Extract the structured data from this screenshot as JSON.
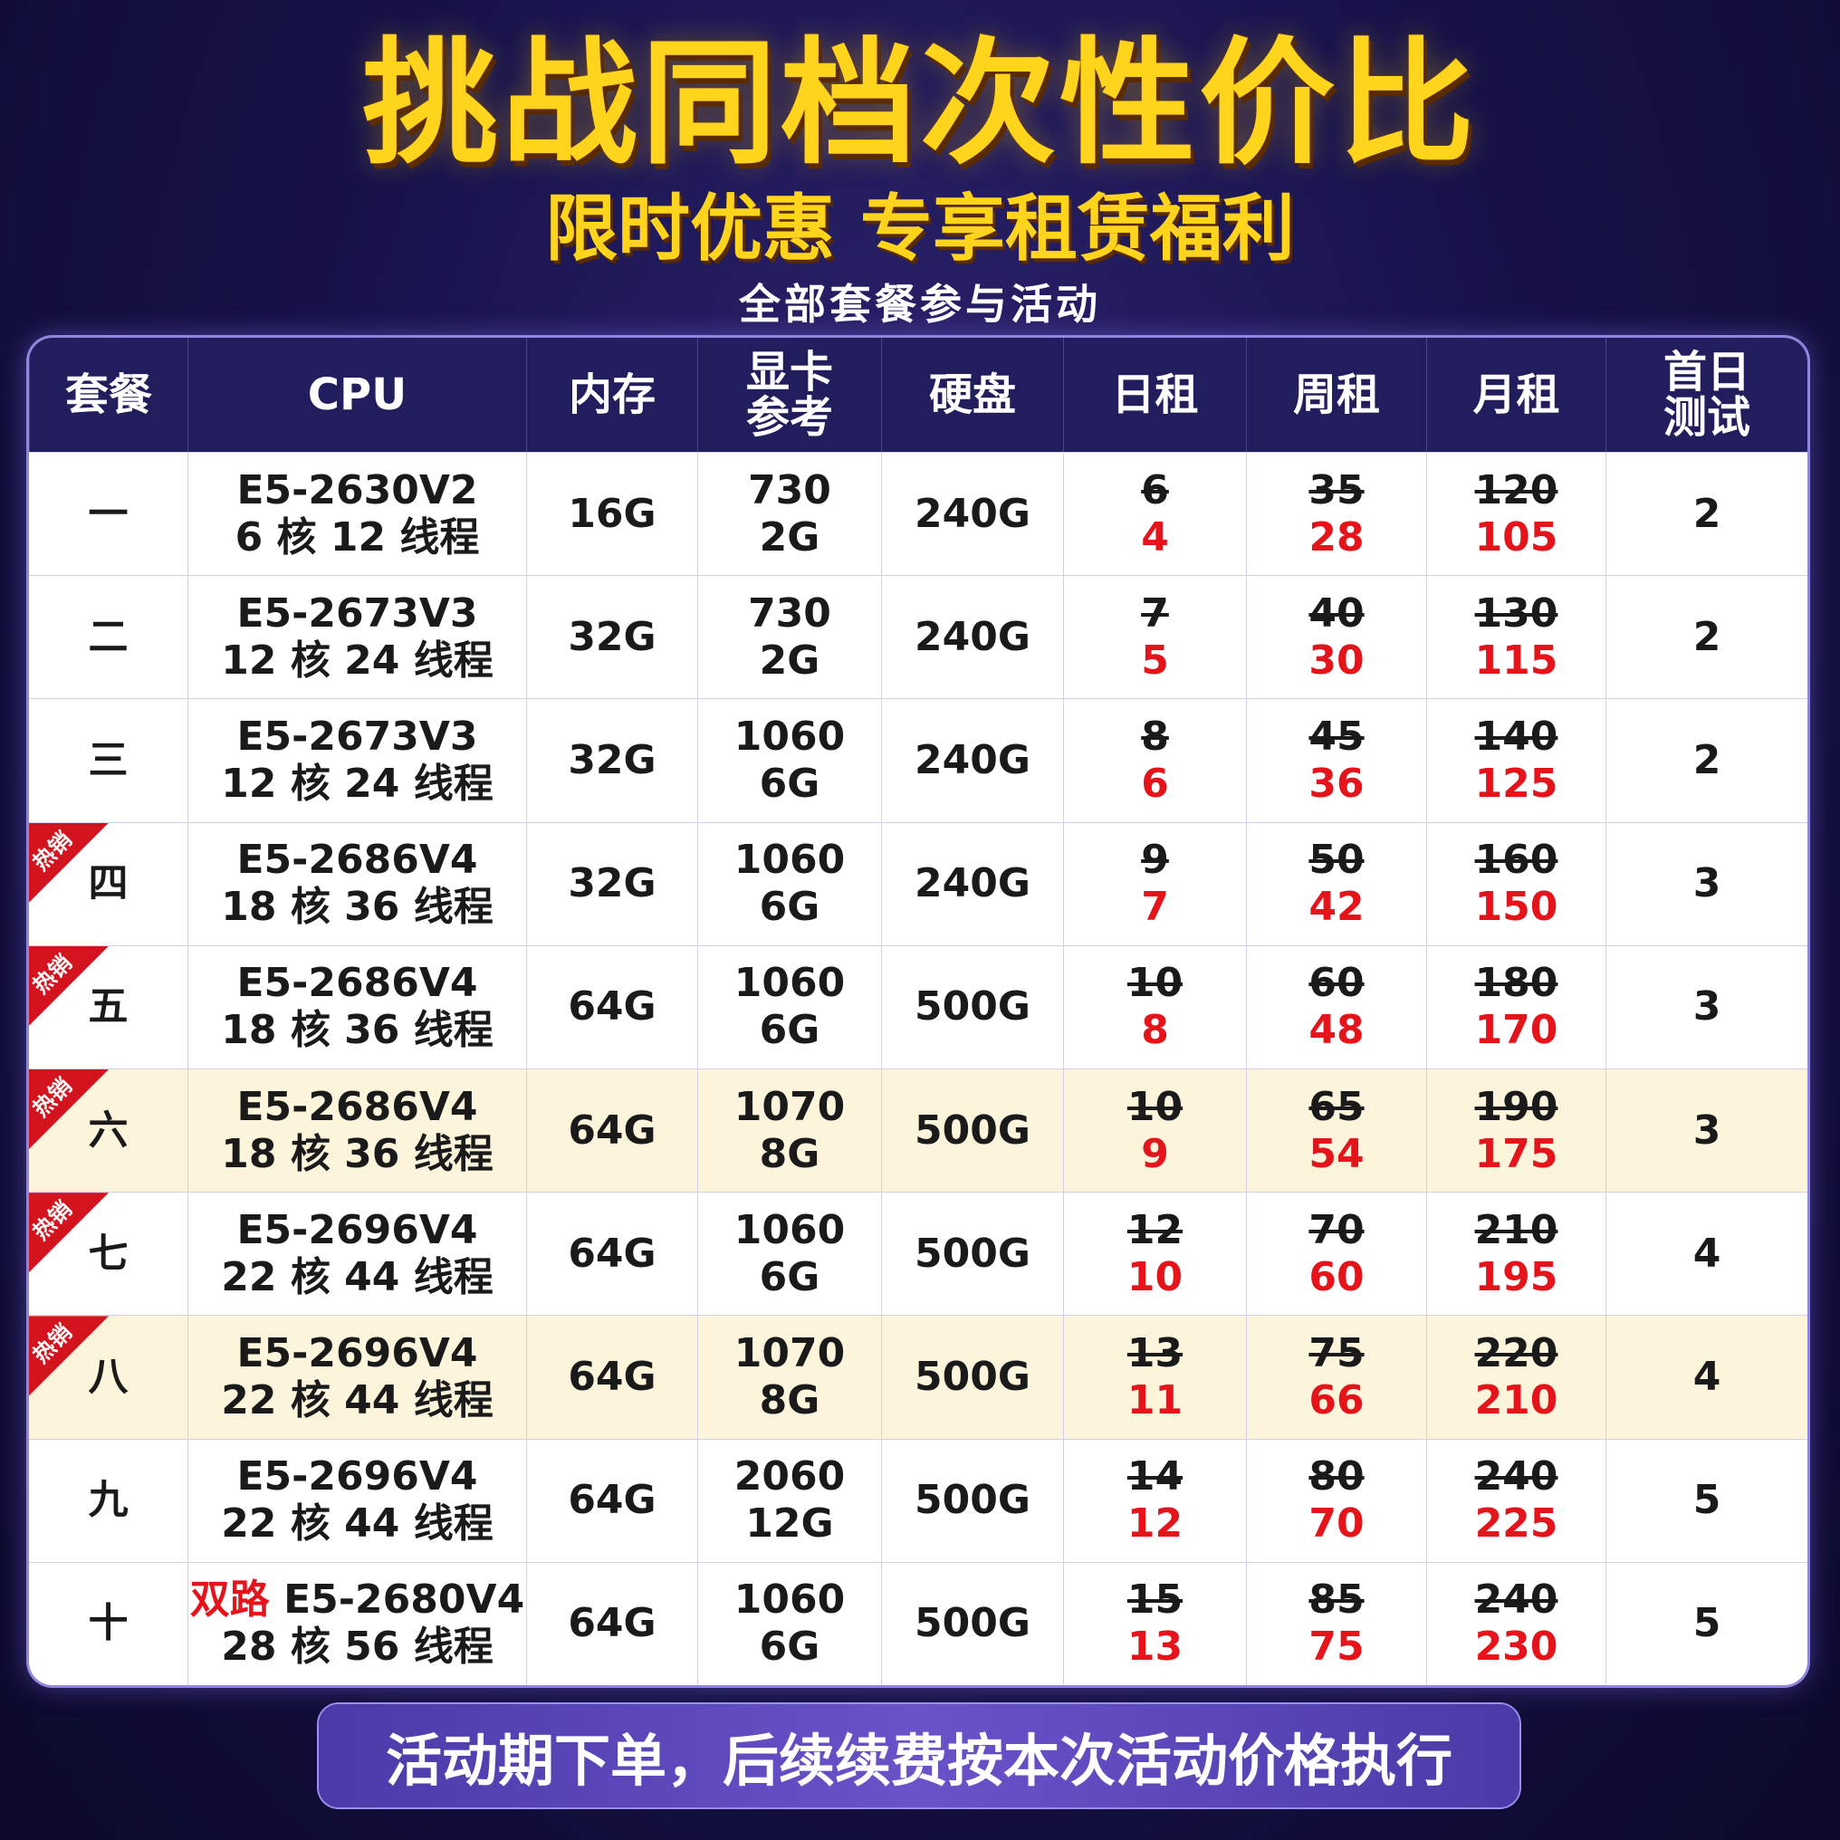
{
  "header": {
    "title": "挑战同档次性价比",
    "subtitle": "限时优惠 专享租赁福利",
    "note": "全部套餐参与活动"
  },
  "table": {
    "columns": [
      [
        "套餐"
      ],
      [
        "CPU"
      ],
      [
        "内存"
      ],
      [
        "显卡",
        "参考"
      ],
      [
        "硬盘"
      ],
      [
        "日租"
      ],
      [
        "周租"
      ],
      [
        "月租"
      ],
      [
        "首日",
        "测试"
      ]
    ],
    "rows": [
      {
        "plan": "一",
        "cpu": {
          "model": "E5-2630V2",
          "threads": "6 核 12 线程"
        },
        "ram": "16G",
        "gpu": [
          "730",
          "2G"
        ],
        "disk": "240G",
        "daily": {
          "original": 6,
          "price": 4
        },
        "weekly": {
          "original": 35,
          "price": 28
        },
        "monthly": {
          "original": 120,
          "price": 105
        },
        "trial": 2
      },
      {
        "plan": "二",
        "cpu": {
          "model": "E5-2673V3",
          "threads": "12 核 24 线程"
        },
        "ram": "32G",
        "gpu": [
          "730",
          "2G"
        ],
        "disk": "240G",
        "daily": {
          "original": 7,
          "price": 5
        },
        "weekly": {
          "original": 40,
          "price": 30
        },
        "monthly": {
          "original": 130,
          "price": 115
        },
        "trial": 2
      },
      {
        "plan": "三",
        "cpu": {
          "model": "E5-2673V3",
          "threads": "12 核 24 线程"
        },
        "ram": "32G",
        "gpu": [
          "1060",
          "6G"
        ],
        "disk": "240G",
        "daily": {
          "original": 8,
          "price": 6
        },
        "weekly": {
          "original": 45,
          "price": 36
        },
        "monthly": {
          "original": 140,
          "price": 125
        },
        "trial": 2
      },
      {
        "plan": "四",
        "badge": "热销",
        "cpu": {
          "model": "E5-2686V4",
          "threads": "18 核 36 线程"
        },
        "ram": "32G",
        "gpu": [
          "1060",
          "6G"
        ],
        "disk": "240G",
        "daily": {
          "original": 9,
          "price": 7
        },
        "weekly": {
          "original": 50,
          "price": 42
        },
        "monthly": {
          "original": 160,
          "price": 150
        },
        "trial": 3
      },
      {
        "plan": "五",
        "badge": "热销",
        "cpu": {
          "model": "E5-2686V4",
          "threads": "18 核 36 线程"
        },
        "ram": "64G",
        "gpu": [
          "1060",
          "6G"
        ],
        "disk": "500G",
        "daily": {
          "original": 10,
          "price": 8
        },
        "weekly": {
          "original": 60,
          "price": 48
        },
        "monthly": {
          "original": 180,
          "price": 170
        },
        "trial": 3
      },
      {
        "plan": "六",
        "badge": "热销",
        "cpu": {
          "model": "E5-2686V4",
          "threads": "18 核 36 线程"
        },
        "ram": "64G",
        "gpu": [
          "1070",
          "8G"
        ],
        "disk": "500G",
        "daily": {
          "original": 10,
          "price": 9
        },
        "weekly": {
          "original": 65,
          "price": 54
        },
        "monthly": {
          "original": 190,
          "price": 175
        },
        "trial": 3
      },
      {
        "plan": "七",
        "badge": "热销",
        "cpu": {
          "model": "E5-2696V4",
          "threads": "22 核 44 线程"
        },
        "ram": "64G",
        "gpu": [
          "1060",
          "6G"
        ],
        "disk": "500G",
        "daily": {
          "original": 12,
          "price": 10
        },
        "weekly": {
          "original": 70,
          "price": 60
        },
        "monthly": {
          "original": 210,
          "price": 195
        },
        "trial": 4
      },
      {
        "plan": "八",
        "badge": "热销",
        "cpu": {
          "model": "E5-2696V4",
          "threads": "22 核 44 线程"
        },
        "ram": "64G",
        "gpu": [
          "1070",
          "8G"
        ],
        "disk": "500G",
        "daily": {
          "original": 13,
          "price": 11
        },
        "weekly": {
          "original": 75,
          "price": 66
        },
        "monthly": {
          "original": 220,
          "price": 210
        },
        "trial": 4
      },
      {
        "plan": "九",
        "cpu": {
          "model": "E5-2696V4",
          "threads": "22 核 44 线程"
        },
        "ram": "64G",
        "gpu": [
          "2060",
          "12G"
        ],
        "disk": "500G",
        "daily": {
          "original": 14,
          "price": 12
        },
        "weekly": {
          "original": 80,
          "price": 70
        },
        "monthly": {
          "original": 240,
          "price": 225
        },
        "trial": 5
      },
      {
        "plan": "十",
        "cpu": {
          "tag": "双路",
          "model": "E5-2680V4",
          "threads": "28 核 56 线程"
        },
        "ram": "64G",
        "gpu": [
          "1060",
          "6G"
        ],
        "disk": "500G",
        "daily": {
          "original": 15,
          "price": 13
        },
        "weekly": {
          "original": 85,
          "price": 75
        },
        "monthly": {
          "original": 240,
          "price": 230
        },
        "trial": 5
      }
    ]
  },
  "footer": "活动期下单，后续续费按本次活动价格执行"
}
